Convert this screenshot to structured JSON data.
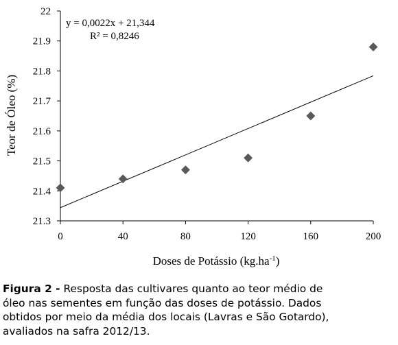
{
  "chart_data": {
    "type": "scatter",
    "xlabel": "Doses de Potássio (kg.ha",
    "xlabel_sup": "-1",
    "xlabel_end": ")",
    "ylabel": "Teor de Óleo (%)",
    "x_ticks": [
      0,
      40,
      80,
      120,
      160,
      200
    ],
    "y_ticks": [
      "21.3",
      "21.4",
      "21.5",
      "21.6",
      "21.7",
      "21.8",
      "21.9",
      "22"
    ],
    "xlim": [
      0,
      200
    ],
    "ylim": [
      21.3,
      22.0
    ],
    "grid": false,
    "series": [
      {
        "marker": "diamond",
        "color": "#595959",
        "points": [
          {
            "x": 0,
            "y": 21.41
          },
          {
            "x": 40,
            "y": 21.44
          },
          {
            "x": 80,
            "y": 21.47
          },
          {
            "x": 120,
            "y": 21.51
          },
          {
            "x": 160,
            "y": 21.65
          },
          {
            "x": 200,
            "y": 21.88
          }
        ]
      }
    ],
    "trendline": {
      "slope": 0.0022,
      "intercept": 21.344,
      "equation": "y = 0,0022x + 21,344",
      "r_squared": "R² = 0,8246",
      "color": "#000000"
    }
  },
  "caption": {
    "label": "Figura 2 -",
    "lines": [
      " Resposta das cultivares quanto ao teor médio de",
      "óleo nas sementes em função das doses de potássio. Dados",
      "obtidos por meio da média dos locais (Lavras e São Gotardo),",
      "avaliados na safra 2012/13."
    ]
  }
}
